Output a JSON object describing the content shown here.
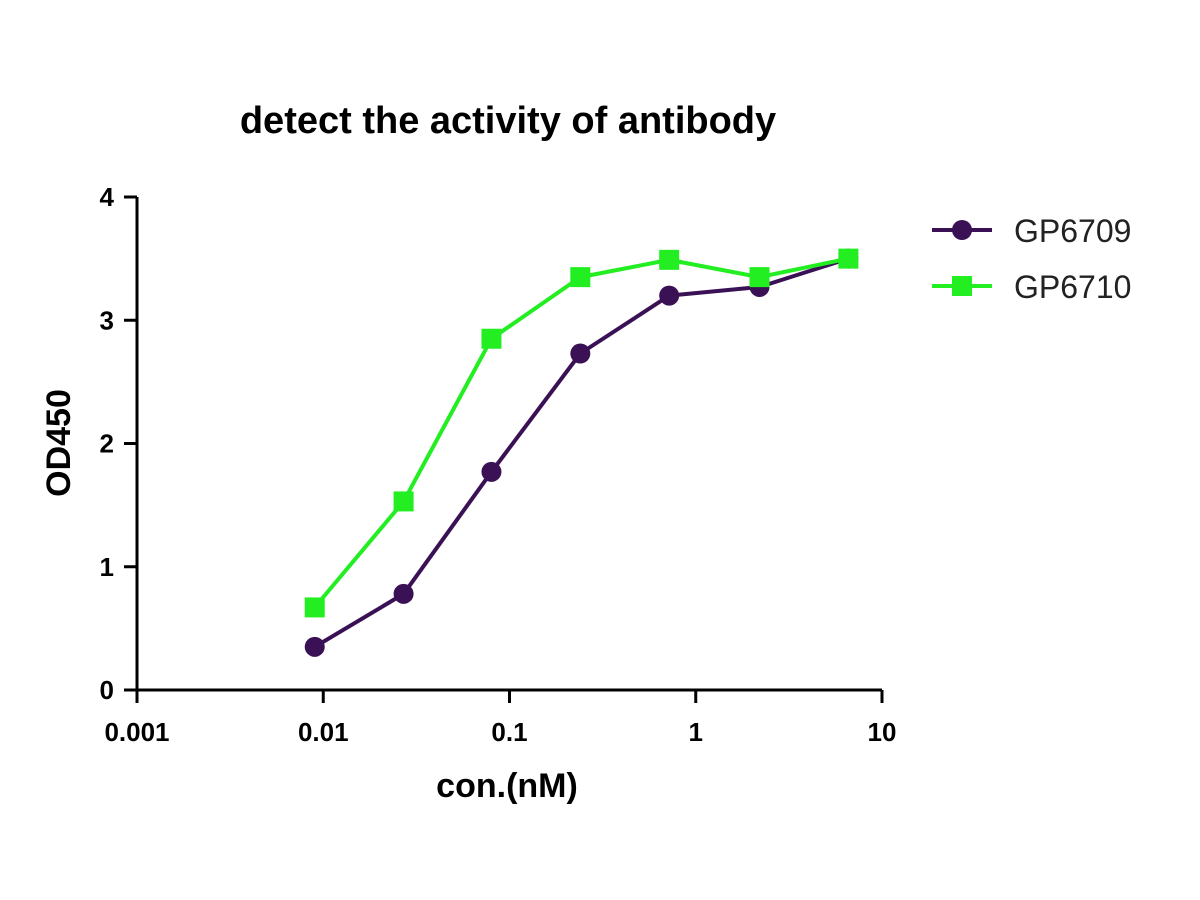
{
  "chart_data": {
    "type": "line",
    "title": "detect the activity of antibody",
    "xlabel": "con.(nM)",
    "ylabel": "OD450",
    "xscale": "log",
    "xlim": [
      0.001,
      10
    ],
    "ylim": [
      0,
      4
    ],
    "x_ticks": [
      "0.001",
      "0.01",
      "0.1",
      "1",
      "10"
    ],
    "y_ticks": [
      "0",
      "1",
      "2",
      "3",
      "4"
    ],
    "grid": false,
    "legend_position": "right",
    "series": [
      {
        "name": "GP6709",
        "color": "#3b1155",
        "marker": "circle",
        "x": [
          0.009,
          0.027,
          0.08,
          0.24,
          0.72,
          2.2,
          6.6
        ],
        "y": [
          0.35,
          0.78,
          1.77,
          2.73,
          3.2,
          3.27,
          3.5
        ]
      },
      {
        "name": "GP6710",
        "color": "#22ee22",
        "marker": "square",
        "x": [
          0.009,
          0.027,
          0.08,
          0.24,
          0.72,
          2.2,
          6.6
        ],
        "y": [
          0.67,
          1.53,
          2.85,
          3.35,
          3.49,
          3.35,
          3.5
        ]
      }
    ]
  }
}
